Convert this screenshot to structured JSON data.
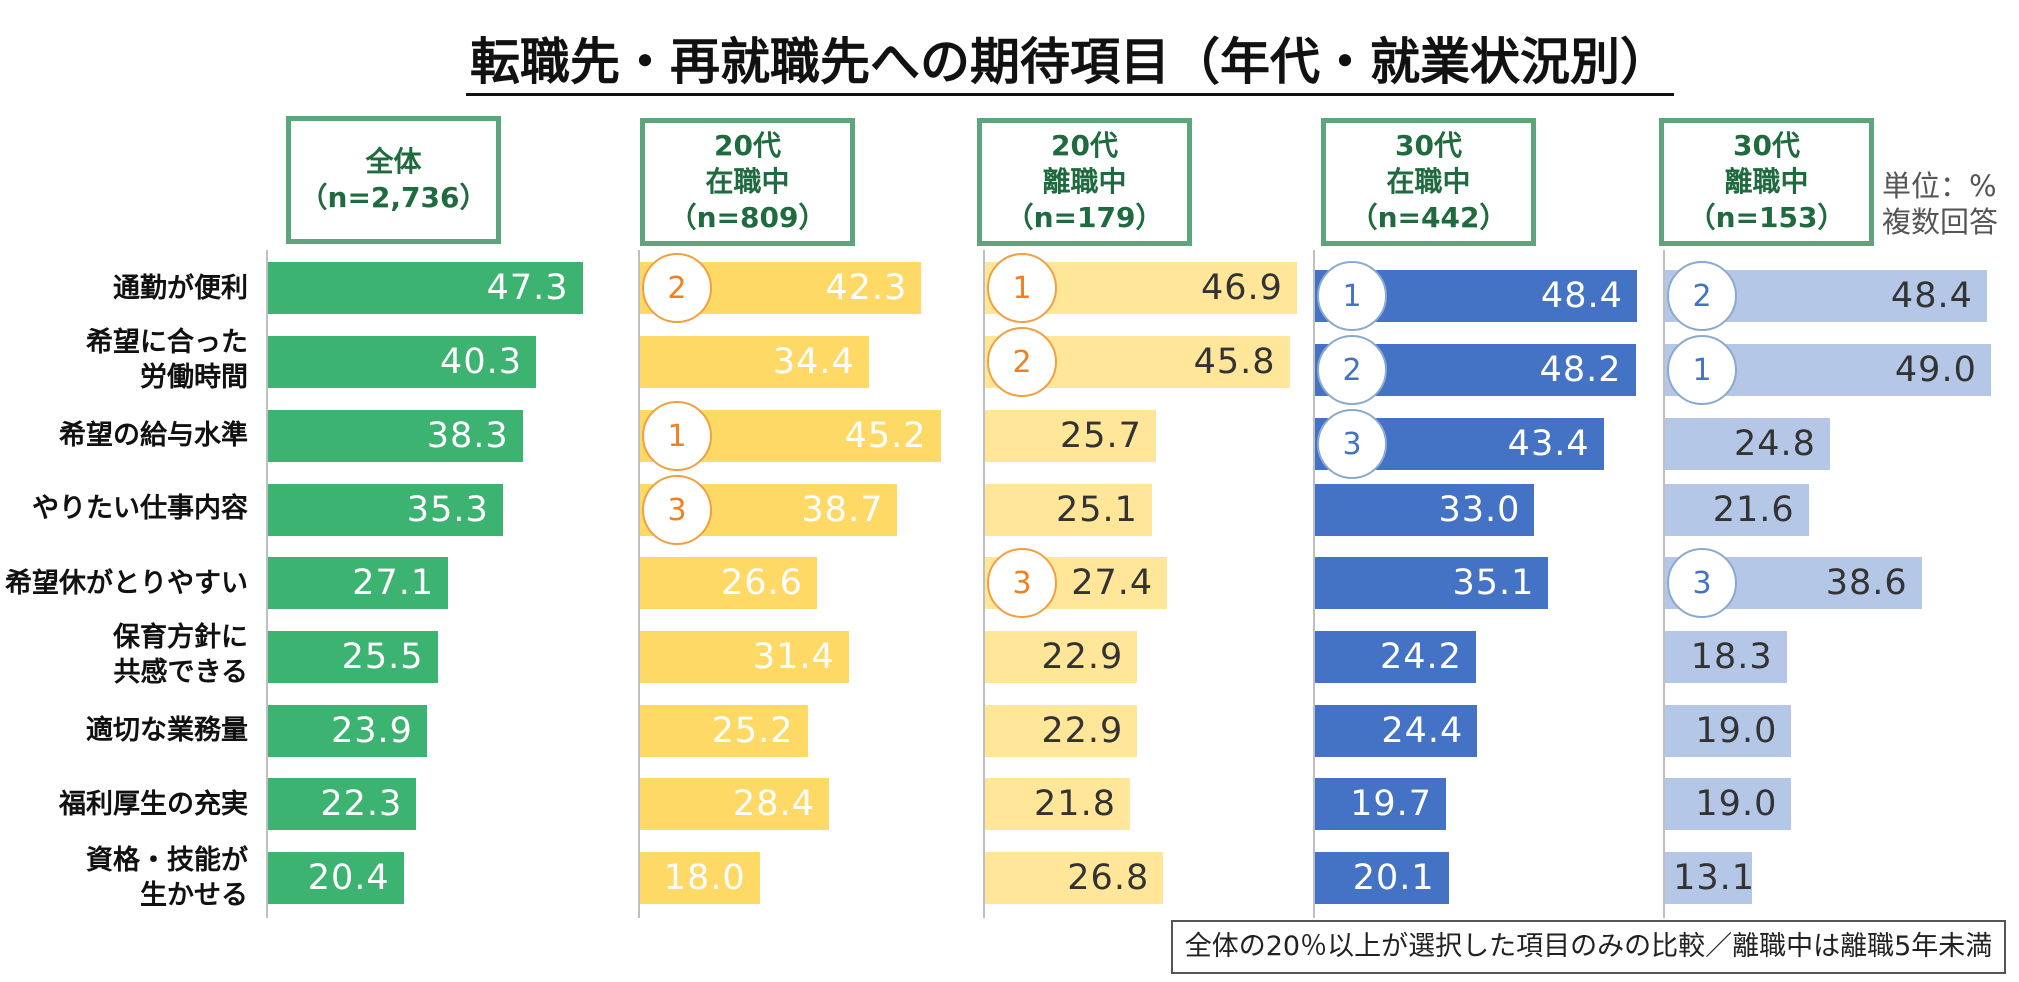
{
  "title": "転職先・再就職先への期待項目（年代・就業状況別）",
  "unit_note": "単位：%\n複数回答",
  "footnote": "全体の20％以上が選択した項目のみの比較／離職中は離職5年未満",
  "colors": {
    "all": "#3cb371",
    "twenties_employed": "#ffd966",
    "twenties_unemployed": "#ffe699",
    "thirties_employed": "#4472c4",
    "thirties_unemployed": "#b4c7e7",
    "header_border": "#5da57a"
  },
  "chart_data": {
    "type": "bar",
    "orientation": "horizontal",
    "categories": [
      "通勤が便利",
      "希望に合った\n労働時間",
      "希望の給与水準",
      "やりたい仕事内容",
      "希望休がとりやすい",
      "保育方針に\n共感できる",
      "適切な業務量",
      "福利厚生の充実",
      "資格・技能が\n生かせる"
    ],
    "series": [
      {
        "name": "全体\n（n=2,736）",
        "values": [
          47.3,
          40.3,
          38.3,
          35.3,
          27.1,
          25.5,
          23.9,
          22.3,
          20.4
        ],
        "ranks": [
          null,
          null,
          null,
          null,
          null,
          null,
          null,
          null,
          null
        ]
      },
      {
        "name": "20代\n在職中\n（n=809）",
        "values": [
          42.3,
          34.4,
          45.2,
          38.7,
          26.6,
          31.4,
          25.2,
          28.4,
          18.0
        ],
        "ranks": [
          "2",
          null,
          "1",
          "3",
          null,
          null,
          null,
          null,
          null
        ]
      },
      {
        "name": "20代\n離職中\n（n=179）",
        "values": [
          46.9,
          45.8,
          25.7,
          25.1,
          27.4,
          22.9,
          22.9,
          21.8,
          26.8
        ],
        "ranks": [
          "1",
          "2",
          null,
          null,
          "3",
          null,
          null,
          null,
          null
        ]
      },
      {
        "name": "30代\n在職中\n（n=442）",
        "values": [
          48.4,
          48.2,
          43.4,
          33.0,
          35.1,
          24.2,
          24.4,
          19.7,
          20.1
        ],
        "ranks": [
          "1",
          "2",
          "3",
          null,
          null,
          null,
          null,
          null,
          null
        ]
      },
      {
        "name": "30代\n離職中\n（n=153）",
        "values": [
          48.4,
          49.0,
          24.8,
          21.6,
          38.6,
          18.3,
          19.0,
          19.0,
          13.1
        ],
        "ranks": [
          "2",
          "1",
          null,
          null,
          "3",
          null,
          null,
          null,
          null
        ]
      }
    ]
  }
}
